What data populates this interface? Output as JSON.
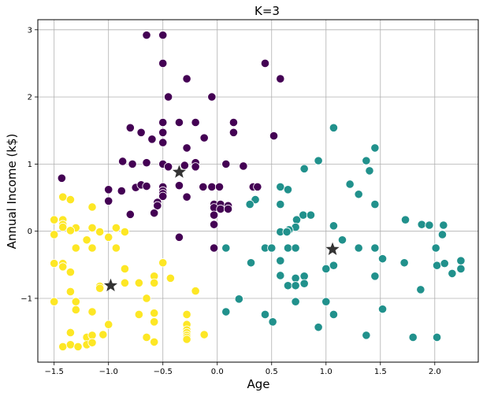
{
  "chart_data": {
    "type": "scatter",
    "title": "K=3",
    "xlabel": "Age",
    "ylabel": "Annual Income (k$)",
    "xlim": [
      -1.65,
      2.4
    ],
    "ylim": [
      -1.95,
      3.15
    ],
    "xticks": [
      -1.5,
      -1.0,
      -0.5,
      0.0,
      0.5,
      1.0,
      1.5,
      2.0
    ],
    "xtick_labels": [
      "−1.5",
      "−1.0",
      "−0.5",
      "0.0",
      "0.5",
      "1.0",
      "1.5",
      "2.0"
    ],
    "yticks": [
      -1,
      0,
      1,
      2,
      3
    ],
    "ytick_labels": [
      "−1",
      "0",
      "1",
      "2",
      "3"
    ],
    "grid": true,
    "colors": {
      "cluster0": "#440154",
      "cluster1": "#21918c",
      "cluster2": "#fde725",
      "centroid": "#333333"
    },
    "series": [
      {
        "cluster": 0,
        "points": [
          [
            -0.65,
            2.92
          ],
          [
            -0.5,
            2.92
          ],
          [
            -0.5,
            2.5
          ],
          [
            0.44,
            2.5
          ],
          [
            -0.28,
            2.27
          ],
          [
            0.58,
            2.27
          ],
          [
            -0.45,
            2.0
          ],
          [
            -0.05,
            2.0
          ],
          [
            -0.8,
            1.54
          ],
          [
            -0.5,
            1.62
          ],
          [
            -0.35,
            1.62
          ],
          [
            -0.2,
            1.62
          ],
          [
            0.15,
            1.62
          ],
          [
            -0.7,
            1.47
          ],
          [
            -0.5,
            1.47
          ],
          [
            -0.12,
            1.39
          ],
          [
            0.15,
            1.47
          ],
          [
            -0.6,
            1.37
          ],
          [
            -0.5,
            1.32
          ],
          [
            -0.28,
            1.24
          ],
          [
            0.52,
            1.42
          ],
          [
            -0.87,
            1.04
          ],
          [
            -0.78,
            1.0
          ],
          [
            -0.65,
            1.02
          ],
          [
            -0.5,
            1.0
          ],
          [
            -0.45,
            0.96
          ],
          [
            -0.3,
            0.98
          ],
          [
            -0.2,
            1.02
          ],
          [
            -0.2,
            0.96
          ],
          [
            0.08,
            1.0
          ],
          [
            0.24,
            0.97
          ],
          [
            -1.43,
            0.79
          ],
          [
            -0.75,
            0.65
          ],
          [
            -0.7,
            0.69
          ],
          [
            -0.65,
            0.67
          ],
          [
            -0.5,
            0.66
          ],
          [
            -0.5,
            0.6
          ],
          [
            -0.5,
            0.56
          ],
          [
            -0.5,
            0.52
          ],
          [
            -0.35,
            0.68
          ],
          [
            -0.13,
            0.66
          ],
          [
            -0.05,
            0.66
          ],
          [
            0.02,
            0.66
          ],
          [
            0.33,
            0.66
          ],
          [
            0.37,
            0.66
          ],
          [
            -1.0,
            0.62
          ],
          [
            -0.88,
            0.6
          ],
          [
            -0.28,
            0.51
          ],
          [
            -0.55,
            0.43
          ],
          [
            -0.55,
            0.38
          ],
          [
            -0.03,
            0.4
          ],
          [
            0.03,
            0.4
          ],
          [
            0.1,
            0.38
          ],
          [
            -1.0,
            0.45
          ],
          [
            -0.03,
            0.35
          ],
          [
            0.03,
            0.33
          ],
          [
            0.1,
            0.33
          ],
          [
            -0.58,
            0.27
          ],
          [
            -0.8,
            0.25
          ],
          [
            -0.03,
            0.24
          ],
          [
            -0.03,
            0.1
          ],
          [
            -0.03,
            -0.25
          ],
          [
            -0.35,
            -0.09
          ]
        ]
      },
      {
        "cluster": 1,
        "points": [
          [
            1.07,
            1.54
          ],
          [
            1.45,
            1.24
          ],
          [
            1.37,
            1.05
          ],
          [
            0.93,
            1.05
          ],
          [
            0.8,
            0.93
          ],
          [
            1.4,
            0.9
          ],
          [
            1.22,
            0.7
          ],
          [
            1.3,
            0.55
          ],
          [
            0.58,
            0.66
          ],
          [
            0.65,
            0.62
          ],
          [
            0.35,
            0.47
          ],
          [
            0.3,
            0.4
          ],
          [
            0.58,
            0.4
          ],
          [
            1.45,
            0.4
          ],
          [
            0.73,
            0.17
          ],
          [
            0.79,
            0.24
          ],
          [
            0.86,
            0.24
          ],
          [
            1.73,
            0.17
          ],
          [
            0.72,
            0.06
          ],
          [
            0.66,
            0.02
          ],
          [
            0.58,
            -0.01
          ],
          [
            0.64,
            -0.01
          ],
          [
            1.07,
            0.08
          ],
          [
            1.88,
            0.1
          ],
          [
            1.95,
            0.09
          ],
          [
            2.08,
            0.09
          ],
          [
            2.07,
            -0.05
          ],
          [
            1.15,
            -0.13
          ],
          [
            0.08,
            -0.25
          ],
          [
            0.44,
            -0.25
          ],
          [
            0.5,
            -0.25
          ],
          [
            0.65,
            -0.25
          ],
          [
            0.72,
            -0.25
          ],
          [
            1.3,
            -0.25
          ],
          [
            1.45,
            -0.25
          ],
          [
            2.01,
            -0.25
          ],
          [
            0.31,
            -0.47
          ],
          [
            0.58,
            -0.44
          ],
          [
            1.52,
            -0.41
          ],
          [
            1.07,
            -0.51
          ],
          [
            1.0,
            -0.56
          ],
          [
            0.72,
            -0.7
          ],
          [
            0.8,
            -0.67
          ],
          [
            0.58,
            -0.66
          ],
          [
            1.45,
            -0.67
          ],
          [
            1.72,
            -0.47
          ],
          [
            2.02,
            -0.51
          ],
          [
            2.09,
            -0.48
          ],
          [
            2.24,
            -0.44
          ],
          [
            2.24,
            -0.56
          ],
          [
            2.16,
            -0.63
          ],
          [
            0.65,
            -0.81
          ],
          [
            0.72,
            -0.81
          ],
          [
            0.8,
            -0.78
          ],
          [
            1.87,
            -0.87
          ],
          [
            0.2,
            -1.01
          ],
          [
            1.0,
            -1.05
          ],
          [
            0.72,
            -1.05
          ],
          [
            0.08,
            -1.2
          ],
          [
            0.44,
            -1.24
          ],
          [
            1.07,
            -1.24
          ],
          [
            0.51,
            -1.35
          ],
          [
            1.52,
            -1.16
          ],
          [
            0.93,
            -1.43
          ],
          [
            1.37,
            -1.55
          ],
          [
            1.8,
            -1.58
          ],
          [
            2.02,
            -1.58
          ]
        ]
      },
      {
        "cluster": 2,
        "points": [
          [
            -1.42,
            0.51
          ],
          [
            -1.35,
            0.47
          ],
          [
            -1.15,
            0.36
          ],
          [
            -1.5,
            0.17
          ],
          [
            -1.42,
            0.17
          ],
          [
            -1.42,
            0.1
          ],
          [
            -1.42,
            0.06
          ],
          [
            -1.3,
            0.05
          ],
          [
            -1.15,
            0.05
          ],
          [
            -1.35,
            0.01
          ],
          [
            -0.93,
            0.05
          ],
          [
            -1.08,
            -0.01
          ],
          [
            -1.5,
            -0.05
          ],
          [
            -0.85,
            -0.01
          ],
          [
            -1.2,
            -0.13
          ],
          [
            -1.0,
            -0.09
          ],
          [
            -1.3,
            -0.25
          ],
          [
            -1.15,
            -0.25
          ],
          [
            -0.93,
            -0.25
          ],
          [
            -1.5,
            -0.48
          ],
          [
            -1.42,
            -0.48
          ],
          [
            -1.42,
            -0.53
          ],
          [
            -1.35,
            -0.61
          ],
          [
            -0.85,
            -0.56
          ],
          [
            -0.58,
            -0.67
          ],
          [
            -0.85,
            -0.77
          ],
          [
            -0.72,
            -0.77
          ],
          [
            -0.58,
            -0.77
          ],
          [
            -0.5,
            -0.47
          ],
          [
            -0.43,
            -0.7
          ],
          [
            -1.08,
            -0.82
          ],
          [
            -1.08,
            -0.85
          ],
          [
            -0.2,
            -0.89
          ],
          [
            -1.35,
            -0.9
          ],
          [
            -0.65,
            -1.0
          ],
          [
            -1.5,
            -1.05
          ],
          [
            -1.3,
            -1.05
          ],
          [
            -1.3,
            -1.17
          ],
          [
            -1.15,
            -1.2
          ],
          [
            -0.72,
            -1.24
          ],
          [
            -0.58,
            -1.22
          ],
          [
            -0.28,
            -1.24
          ],
          [
            -1.0,
            -1.39
          ],
          [
            -0.58,
            -1.35
          ],
          [
            -0.28,
            -1.39
          ],
          [
            -0.28,
            -1.47
          ],
          [
            -0.28,
            -1.51
          ],
          [
            -0.28,
            -1.55
          ],
          [
            -0.28,
            -1.58
          ],
          [
            -0.28,
            -1.61
          ],
          [
            -1.35,
            -1.51
          ],
          [
            -1.2,
            -1.58
          ],
          [
            -1.15,
            -1.55
          ],
          [
            -1.05,
            -1.54
          ],
          [
            -0.65,
            -1.58
          ],
          [
            -0.12,
            -1.54
          ],
          [
            -1.42,
            -1.72
          ],
          [
            -1.35,
            -1.69
          ],
          [
            -1.28,
            -1.72
          ],
          [
            -1.2,
            -1.69
          ],
          [
            -1.15,
            -1.66
          ],
          [
            -0.58,
            -1.65
          ]
        ]
      }
    ],
    "centroids": [
      [
        -0.35,
        0.88
      ],
      [
        1.06,
        -0.27
      ],
      [
        -0.98,
        -0.81
      ]
    ]
  }
}
